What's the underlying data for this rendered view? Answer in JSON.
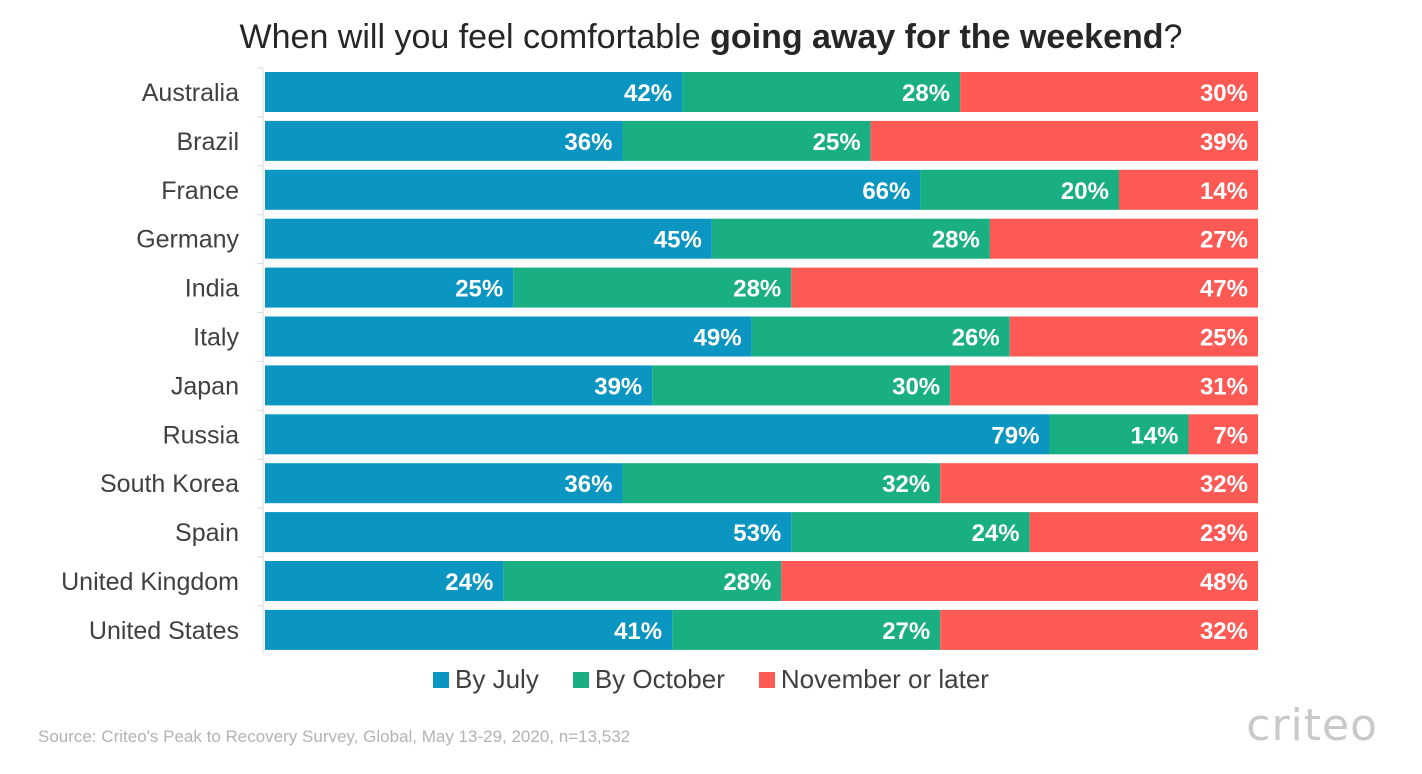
{
  "title": {
    "prefix": "When will you feel comfortable ",
    "bold": "going away for the weekend",
    "suffix": "?"
  },
  "source": "Source: Criteo's Peak to Recovery Survey, Global, May 13-29, 2020, n=13,532",
  "logo_text": "criteo",
  "colors": {
    "july": "#0a96c0",
    "october": "#1aaf82",
    "november": "#fd5a55"
  },
  "chart_data": {
    "type": "bar",
    "orientation": "horizontal-stacked-100",
    "categories": [
      "Australia",
      "Brazil",
      "France",
      "Germany",
      "India",
      "Italy",
      "Japan",
      "Russia",
      "South Korea",
      "Spain",
      "United Kingdom",
      "United States"
    ],
    "series": [
      {
        "name": "By July",
        "values": [
          42,
          36,
          66,
          45,
          25,
          49,
          39,
          79,
          36,
          53,
          24,
          41
        ]
      },
      {
        "name": "By October",
        "values": [
          28,
          25,
          20,
          28,
          28,
          26,
          30,
          14,
          32,
          24,
          28,
          27
        ]
      },
      {
        "name": "November or later",
        "values": [
          30,
          39,
          14,
          27,
          47,
          25,
          31,
          7,
          32,
          23,
          48,
          32
        ]
      }
    ],
    "value_suffix": "%",
    "xlim": [
      0,
      100
    ],
    "legend_position": "bottom"
  }
}
